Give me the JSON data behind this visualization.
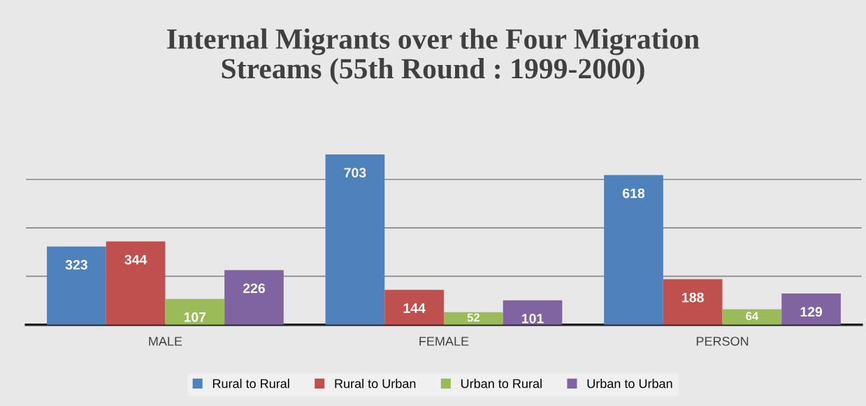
{
  "chart_data": {
    "type": "bar",
    "title": "Internal Migrants over the Four Migration\nStreams (55th Round : 1999-2000)",
    "categories": [
      "MALE",
      "FEMALE",
      "PERSON"
    ],
    "series": [
      {
        "name": "Rural to Rural",
        "color": "#4f81bd",
        "values": [
          323,
          703,
          618
        ]
      },
      {
        "name": "Rural to Urban",
        "color": "#c0504d",
        "values": [
          344,
          144,
          188
        ]
      },
      {
        "name": "Urban to Rural",
        "color": "#9bbb59",
        "values": [
          107,
          52,
          64
        ]
      },
      {
        "name": "Urban to Urban",
        "color": "#8064a2",
        "values": [
          226,
          101,
          129
        ]
      }
    ],
    "yticks": [
      {
        "value": 200,
        "label": null
      },
      {
        "value": 400,
        "label": null
      },
      {
        "value": 600,
        "label": null
      }
    ],
    "tick_labels": "x",
    "grid": "y",
    "legend": "bottom",
    "data_labels": true
  }
}
